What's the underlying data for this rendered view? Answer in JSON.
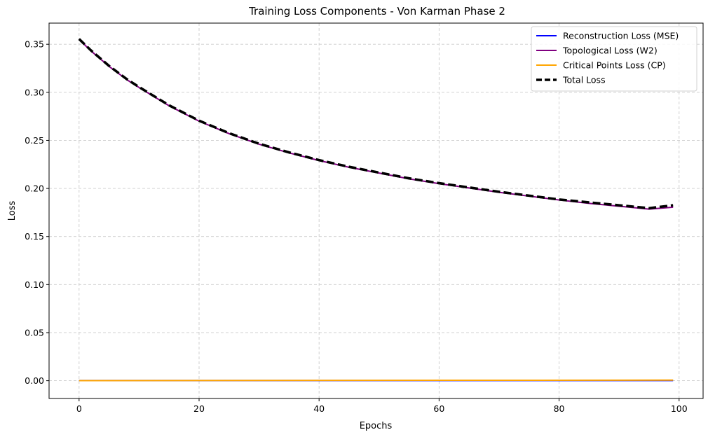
{
  "chart_data": {
    "type": "line",
    "title": "Training Loss Components - Von Karman Phase 2",
    "xlabel": "Epochs",
    "ylabel": "Loss",
    "xlim": [
      -5,
      104
    ],
    "ylim": [
      -0.0185,
      0.372
    ],
    "xticks": [
      0,
      20,
      40,
      60,
      80,
      100
    ],
    "yticks": [
      0.0,
      0.05,
      0.1,
      0.15,
      0.2,
      0.25,
      0.3,
      0.35
    ],
    "grid": true,
    "legend_position": "top-right",
    "series": [
      {
        "name": "Reconstruction Loss (MSE)",
        "color": "#0000ff",
        "style": "solid",
        "x": [
          0,
          99
        ],
        "y": [
          0.0002,
          0.0002
        ]
      },
      {
        "name": "Topological Loss (W2)",
        "color": "#800080",
        "style": "solid",
        "x": [
          0,
          2,
          5,
          8,
          10,
          15,
          20,
          25,
          30,
          35,
          40,
          45,
          50,
          55,
          60,
          65,
          70,
          75,
          80,
          85,
          90,
          95,
          99
        ],
        "y": [
          0.355,
          0.343,
          0.327,
          0.313,
          0.305,
          0.286,
          0.27,
          0.257,
          0.246,
          0.237,
          0.229,
          0.222,
          0.216,
          0.21,
          0.205,
          0.2005,
          0.196,
          0.192,
          0.188,
          0.1845,
          0.1815,
          0.1785,
          0.1805
        ]
      },
      {
        "name": "Critical Points Loss (CP)",
        "color": "#ffa500",
        "style": "solid",
        "x": [
          0,
          99
        ],
        "y": [
          0.0001,
          0.0006
        ]
      },
      {
        "name": "Total Loss",
        "color": "#000000",
        "style": "dashed",
        "x": [
          0,
          2,
          5,
          8,
          10,
          15,
          20,
          25,
          30,
          35,
          40,
          45,
          50,
          55,
          60,
          65,
          70,
          75,
          80,
          85,
          90,
          95,
          99
        ],
        "y": [
          0.3555,
          0.3435,
          0.3275,
          0.3135,
          0.3055,
          0.2865,
          0.2705,
          0.2575,
          0.2465,
          0.2375,
          0.2295,
          0.2225,
          0.2165,
          0.2105,
          0.2055,
          0.201,
          0.1965,
          0.1925,
          0.1885,
          0.1855,
          0.1825,
          0.1795,
          0.1825
        ]
      }
    ]
  }
}
